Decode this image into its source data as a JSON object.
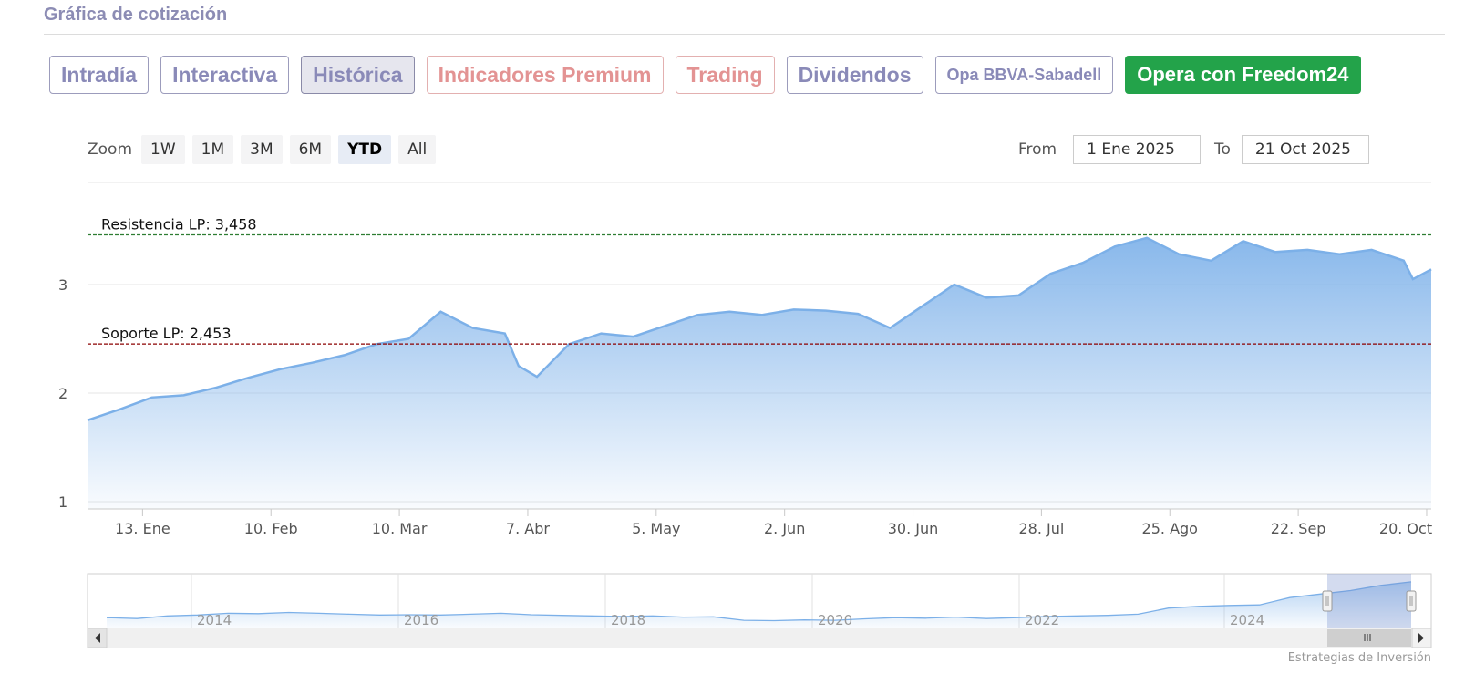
{
  "section": {
    "title": "Gráfica de cotización"
  },
  "tabs": [
    {
      "label": "Intradía",
      "style": "normal"
    },
    {
      "label": "Interactiva",
      "style": "normal"
    },
    {
      "label": "Histórica",
      "style": "active"
    },
    {
      "label": "Indicadores Premium",
      "style": "red"
    },
    {
      "label": "Trading",
      "style": "red"
    },
    {
      "label": "Dividendos",
      "style": "normal"
    },
    {
      "label": "Opa BBVA-Sabadell",
      "style": "small"
    },
    {
      "label": "Opera con Freedom24",
      "style": "green"
    }
  ],
  "zoom": {
    "label": "Zoom",
    "buttons": [
      "1W",
      "1M",
      "3M",
      "6M",
      "YTD",
      "All"
    ],
    "active": "YTD"
  },
  "range": {
    "from_label": "From",
    "from_value": "1 Ene 2025",
    "to_label": "To",
    "to_value": "21 Oct 2025"
  },
  "colors": {
    "area_line": "#7cb0e8",
    "area_fill_top": "#82b4ea",
    "resistance": "#2e7d32",
    "support": "#8b0000",
    "accent_green": "#23a34a"
  },
  "chart_data": {
    "type": "area",
    "title": "",
    "xlabel": "",
    "ylabel": "",
    "ylim": [
      1,
      3.5
    ],
    "y_ticks": [
      "1",
      "2",
      "3"
    ],
    "x_ticks": [
      "13. Ene",
      "10. Feb",
      "10. Mar",
      "7. Abr",
      "5. May",
      "2. Jun",
      "30. Jun",
      "28. Jul",
      "25. Ago",
      "22. Sep",
      "20. Oct"
    ],
    "x_start": "2025-01-01",
    "levels": [
      {
        "label": "Resistencia LP: 3,458",
        "value": 3.458,
        "color": "#2e7d32"
      },
      {
        "label": "Soporte LP: 2,453",
        "value": 2.453,
        "color": "#8b0000"
      }
    ],
    "x": [
      "2025-01-01",
      "2025-01-08",
      "2025-01-15",
      "2025-01-22",
      "2025-01-29",
      "2025-02-05",
      "2025-02-12",
      "2025-02-19",
      "2025-02-26",
      "2025-03-05",
      "2025-03-12",
      "2025-03-19",
      "2025-03-26",
      "2025-04-02",
      "2025-04-05",
      "2025-04-09",
      "2025-04-16",
      "2025-04-23",
      "2025-04-30",
      "2025-05-07",
      "2025-05-14",
      "2025-05-21",
      "2025-05-28",
      "2025-06-04",
      "2025-06-11",
      "2025-06-18",
      "2025-06-25",
      "2025-07-02",
      "2025-07-09",
      "2025-07-16",
      "2025-07-23",
      "2025-07-30",
      "2025-08-06",
      "2025-08-13",
      "2025-08-20",
      "2025-08-27",
      "2025-09-03",
      "2025-09-10",
      "2025-09-17",
      "2025-09-24",
      "2025-10-01",
      "2025-10-08",
      "2025-10-15",
      "2025-10-17",
      "2025-10-21"
    ],
    "series": [
      {
        "values": [
          1.75,
          1.85,
          1.96,
          1.98,
          2.05,
          2.14,
          2.22,
          2.28,
          2.35,
          2.45,
          2.5,
          2.75,
          2.6,
          2.55,
          2.25,
          2.15,
          2.45,
          2.55,
          2.52,
          2.62,
          2.72,
          2.75,
          2.72,
          2.77,
          2.76,
          2.73,
          2.6,
          2.8,
          3.0,
          2.88,
          2.9,
          3.1,
          3.2,
          3.35,
          3.43,
          3.28,
          3.22,
          3.4,
          3.3,
          3.32,
          3.28,
          3.32,
          3.22,
          3.05,
          3.14
        ]
      }
    ],
    "navigator": {
      "x_ticks": [
        "2014",
        "2016",
        "2018",
        "2020",
        "2022",
        "2024"
      ],
      "values": [
        1.05,
        1.0,
        1.15,
        1.2,
        1.3,
        1.28,
        1.35,
        1.3,
        1.25,
        1.2,
        1.22,
        1.2,
        1.25,
        1.3,
        1.22,
        1.18,
        1.15,
        1.12,
        1.15,
        1.08,
        1.1,
        0.9,
        0.88,
        0.92,
        0.9,
        0.98,
        1.05,
        1.02,
        1.08,
        1.0,
        1.05,
        1.12,
        1.15,
        1.18,
        1.25,
        1.6,
        1.7,
        1.75,
        1.78,
        2.2,
        2.4,
        2.6,
        2.9,
        3.1
      ]
    },
    "credit": "Estrategias de Inversión"
  }
}
